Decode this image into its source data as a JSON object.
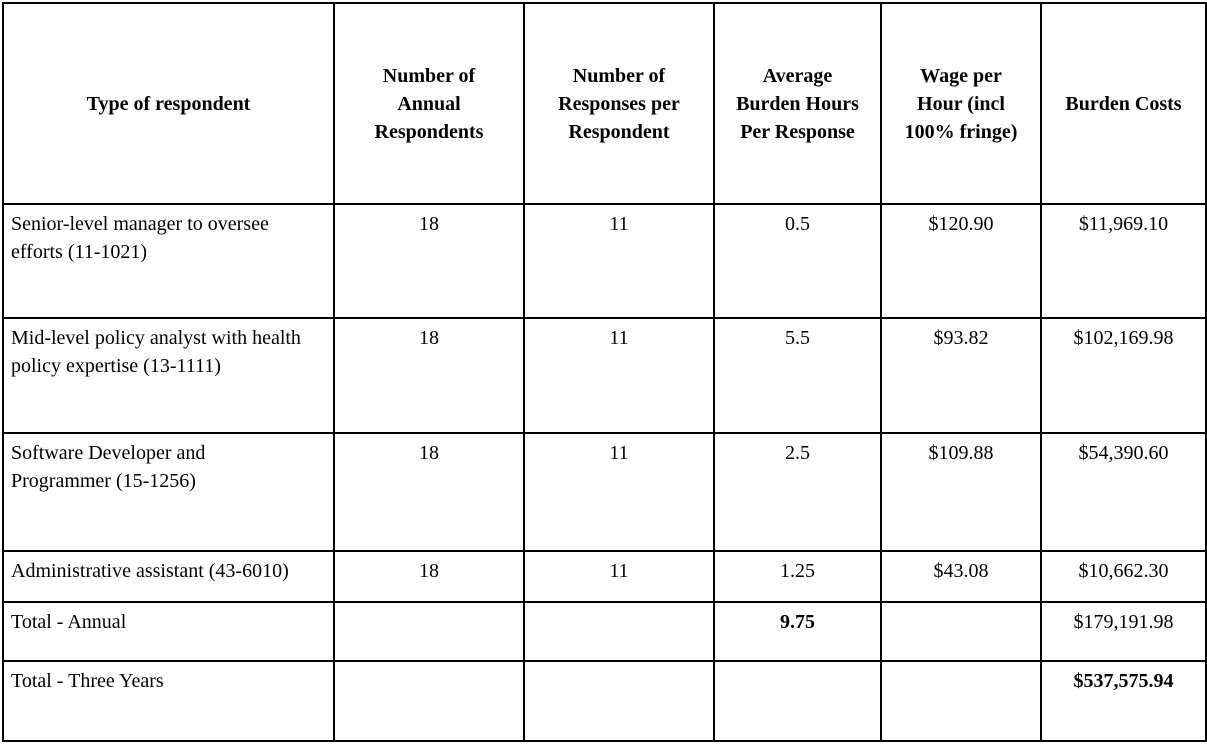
{
  "colors": {
    "background": "#ffffff",
    "border": "#000000",
    "text": "#000000"
  },
  "table": {
    "columns": [
      "Type of respondent",
      "Number of\nAnnual\nRespondents",
      "Number of\nResponses per\nRespondent",
      "Average\nBurden Hours\nPer Response",
      "Wage per\nHour (incl\n100% fringe)",
      "Burden Costs"
    ],
    "rows": [
      {
        "type": "Senior-level manager to oversee\nefforts (11-1021)",
        "annual_respondents": "18",
        "responses_per_respondent": "11",
        "avg_burden_hours": "0.5",
        "wage_per_hour": "$120.90",
        "burden_costs": "$11,969.10"
      },
      {
        "type": "Mid-level policy analyst with health\npolicy expertise (13-1111)",
        "annual_respondents": "18",
        "responses_per_respondent": "11",
        "avg_burden_hours": "5.5",
        "wage_per_hour": "$93.82",
        "burden_costs": "$102,169.98"
      },
      {
        "type": "Software Developer and\nProgrammer (15-1256)",
        "annual_respondents": "18",
        "responses_per_respondent": "11",
        "avg_burden_hours": "2.5",
        "wage_per_hour": "$109.88",
        "burden_costs": "$54,390.60"
      },
      {
        "type": "Administrative assistant (43-6010)",
        "annual_respondents": "18",
        "responses_per_respondent": "11",
        "avg_burden_hours": "1.25",
        "wage_per_hour": "$43.08",
        "burden_costs": "$10,662.30"
      }
    ],
    "totals": [
      {
        "label": "Total - Annual",
        "avg_burden_hours": "9.75",
        "burden_costs": "$179,191.98"
      },
      {
        "label": "Total - Three Years",
        "burden_costs": "$537,575.94"
      }
    ]
  }
}
